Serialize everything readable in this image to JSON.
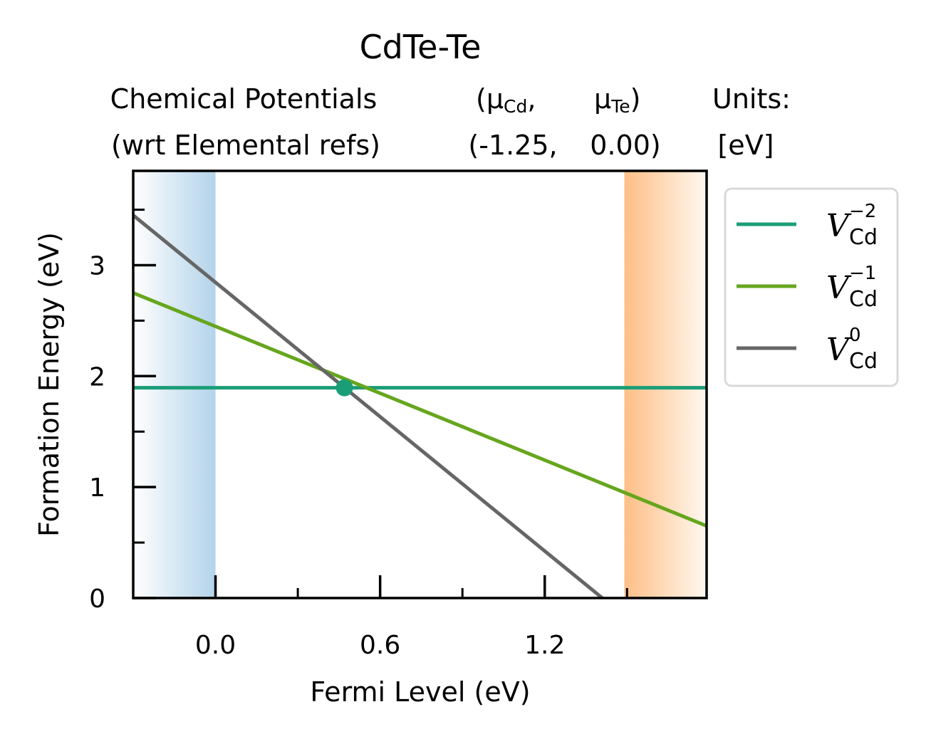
{
  "chart_data": {
    "type": "line",
    "title": "CdTe-Te",
    "subtitle": {
      "left_line1": "Chemical Potentials",
      "left_line2": "(wrt Elemental refs)",
      "mu_open": "(μ",
      "mu_cd_sub": "Cd",
      "mu_sep": ",",
      "mu_te": "μ",
      "mu_te_sub": "Te",
      "mu_close": ")",
      "values_cd": "(-1.25,",
      "values_te": "0.00)",
      "units_line1": "Units:",
      "units_line2": "[eV]"
    },
    "xlabel": "Fermi Level (eV)",
    "ylabel": "Formation Energy (eV)",
    "xlim": [
      -0.3,
      1.79
    ],
    "ylim": [
      0,
      3.85
    ],
    "x_ticks": [
      {
        "value": 0.0,
        "label": "0.0"
      },
      {
        "value": 0.6,
        "label": "0.6"
      },
      {
        "value": 1.2,
        "label": "1.2"
      }
    ],
    "x_minor_ticks": [
      0.3,
      0.9,
      1.5
    ],
    "y_ticks": [
      {
        "value": 0,
        "label": "0"
      },
      {
        "value": 1,
        "label": "1"
      },
      {
        "value": 2,
        "label": "2"
      },
      {
        "value": 3,
        "label": "3"
      }
    ],
    "y_minor_ticks": [
      0.5,
      1.5,
      2.5,
      3.5
    ],
    "shaded_regions": [
      {
        "name": "valence-band",
        "x_range": [
          -0.3,
          0.0
        ],
        "color": "#b3d3ea"
      },
      {
        "name": "conduction-band",
        "x_range": [
          1.49,
          1.79
        ],
        "color": "#fdbf86"
      }
    ],
    "series": [
      {
        "name": "V",
        "sub": "Cd",
        "sup": "−2",
        "color": "#1b9e77",
        "x": [
          -0.3,
          1.79
        ],
        "y": [
          1.895,
          1.895
        ]
      },
      {
        "name": "V",
        "sub": "Cd",
        "sup": "−1",
        "color": "#66a61e",
        "x": [
          -0.3,
          1.79
        ],
        "y": [
          2.75,
          0.65
        ]
      },
      {
        "name": "V",
        "sub": "Cd",
        "sup": "0",
        "color": "#666666",
        "x": [
          -0.3,
          1.41
        ],
        "y": [
          3.45,
          0.0
        ]
      }
    ],
    "points": [
      {
        "x": 0.47,
        "y": 1.895,
        "color": "#1b9e77"
      }
    ],
    "legend_position": "outside-right"
  }
}
